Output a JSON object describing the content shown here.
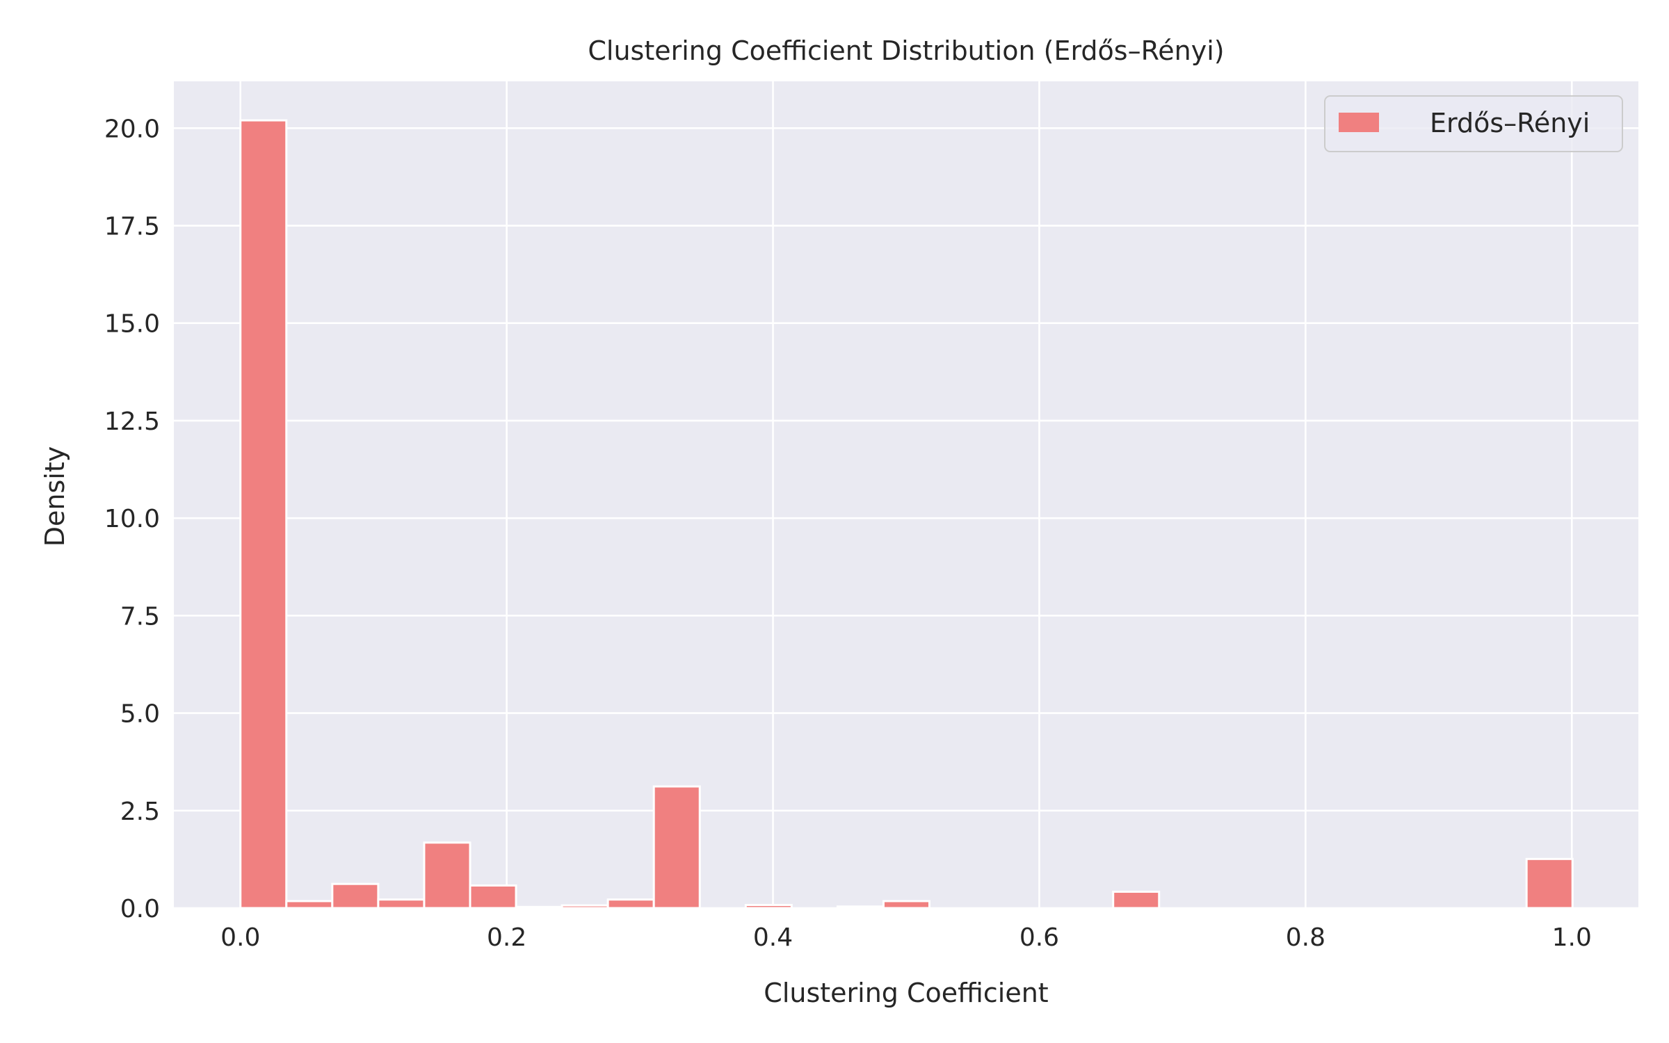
{
  "chart_data": {
    "type": "bar",
    "title": "Clustering Coefficient Distribution (Erdős–Rényi)",
    "xlabel": "Clustering Coefficient",
    "ylabel": "Density",
    "xlim": [
      -0.05,
      1.05
    ],
    "ylim": [
      0,
      21.2
    ],
    "x_ticks": [
      0.0,
      0.2,
      0.4,
      0.6,
      0.8,
      1.0
    ],
    "x_tick_labels": [
      "0.0",
      "0.2",
      "0.4",
      "0.6",
      "0.8",
      "1.0"
    ],
    "y_ticks": [
      0.0,
      2.5,
      5.0,
      7.5,
      10.0,
      12.5,
      15.0,
      17.5,
      20.0
    ],
    "y_tick_labels": [
      "0.0",
      "2.5",
      "5.0",
      "7.5",
      "10.0",
      "12.5",
      "15.0",
      "17.5",
      "20.0"
    ],
    "grid": true,
    "legend_position": "top-right",
    "bin_width": 0.0345,
    "series": [
      {
        "name": "Erdős–Rényi",
        "color": "#f08080",
        "edge_color": "#ffffff",
        "bin_starts": [
          0.0,
          0.0345,
          0.069,
          0.1035,
          0.138,
          0.1725,
          0.207,
          0.2415,
          0.276,
          0.3105,
          0.345,
          0.3795,
          0.414,
          0.4485,
          0.483,
          0.5175,
          0.552,
          0.5865,
          0.621,
          0.6555,
          0.69,
          0.7245,
          0.759,
          0.7935,
          0.828,
          0.8625,
          0.897,
          0.9315,
          0.966
        ],
        "values": [
          20.2,
          0.18,
          0.62,
          0.22,
          1.68,
          0.58,
          0.03,
          0.07,
          0.22,
          3.12,
          0.0,
          0.08,
          0.0,
          0.04,
          0.18,
          0.0,
          0.0,
          0.0,
          0.0,
          0.42,
          0.0,
          0.0,
          0.0,
          0.0,
          0.0,
          0.0,
          0.0,
          0.0,
          1.26
        ]
      }
    ]
  },
  "colors": {
    "plot_background": "#eaeaf2",
    "grid": "#ffffff",
    "text": "#262626"
  }
}
